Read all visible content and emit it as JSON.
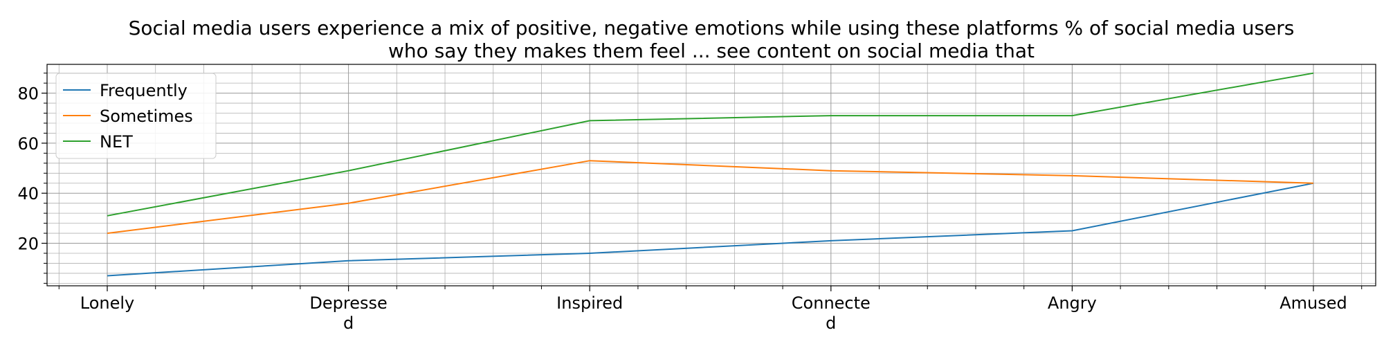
{
  "chart_data": {
    "type": "line",
    "title_line1": "Social media users experience a mix of positive, negative emotions while using these platforms % of social media users",
    "title_line2": "who say they makes them feel ... see content on social media that",
    "categories": [
      "Lonely",
      "Depressed",
      "Inspired",
      "Connected",
      "Angry",
      "Amused"
    ],
    "category_label_lines": [
      [
        "Lonely"
      ],
      [
        "Depresse",
        "d"
      ],
      [
        "Inspired"
      ],
      [
        "Connecte",
        "d"
      ],
      [
        "Angry"
      ],
      [
        "Amused"
      ]
    ],
    "series": [
      {
        "name": "Frequently",
        "color": "#1f77b4",
        "values": [
          7,
          13,
          16,
          21,
          25,
          44
        ]
      },
      {
        "name": "Sometimes",
        "color": "#ff7f0e",
        "values": [
          24,
          36,
          53,
          49,
          47,
          44
        ]
      },
      {
        "name": "NET",
        "color": "#2ca02c",
        "values": [
          31,
          49,
          69,
          71,
          71,
          88
        ]
      }
    ],
    "ylim": [
      3,
      91.5
    ],
    "yticks": [
      20,
      40,
      60,
      80
    ],
    "yticks_minor_step": 4,
    "x_minor_per_major": 5,
    "grid": true,
    "legend_position": "upper-left",
    "xlabel": "",
    "ylabel": ""
  }
}
